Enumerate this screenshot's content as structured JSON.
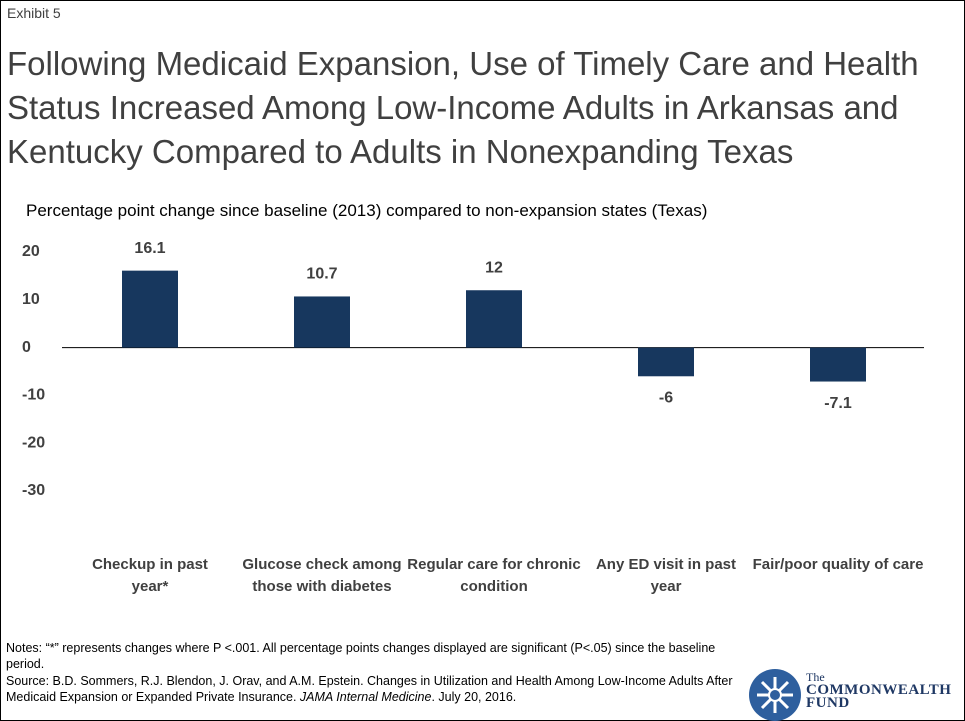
{
  "exhibit": "Exhibit 5",
  "chart_data": {
    "type": "bar",
    "title": "Following Medicaid Expansion, Use of Timely Care and Health Status Increased Among Low-Income Adults in Arkansas and Kentucky Compared to Adults in Nonexpanding Texas",
    "subtitle": "Percentage point change since baseline (2013) compared to non-expansion states (Texas)",
    "categories": [
      "Checkup in past year*",
      "Glucose check among those with diabetes",
      "Regular care for chronic condition",
      "Any ED visit in past year",
      "Fair/poor quality of care"
    ],
    "values": [
      16.1,
      10.7,
      12,
      -6,
      -7.1
    ],
    "color": "#17375e",
    "ylim": [
      -30,
      20
    ],
    "yticks": [
      20,
      10,
      0,
      -10,
      -20,
      -30
    ],
    "grid": false
  },
  "notes": "Notes: “*” represents changes where P <.001. All percentage points changes displayed are significant (P<.05) since the baseline period.",
  "source": [
    "Source: B.D. Sommers, R.J. Blendon, J. Orav, and A.M. Epstein. Changes in Utilization and Health Among Low-Income Adults After Medicaid Expansion or Expanded Private Insurance. ",
    "JAMA Internal Medicine",
    ". July 20, 2016."
  ],
  "logo": [
    "The",
    "COMMONWEALTH",
    "FUND"
  ]
}
